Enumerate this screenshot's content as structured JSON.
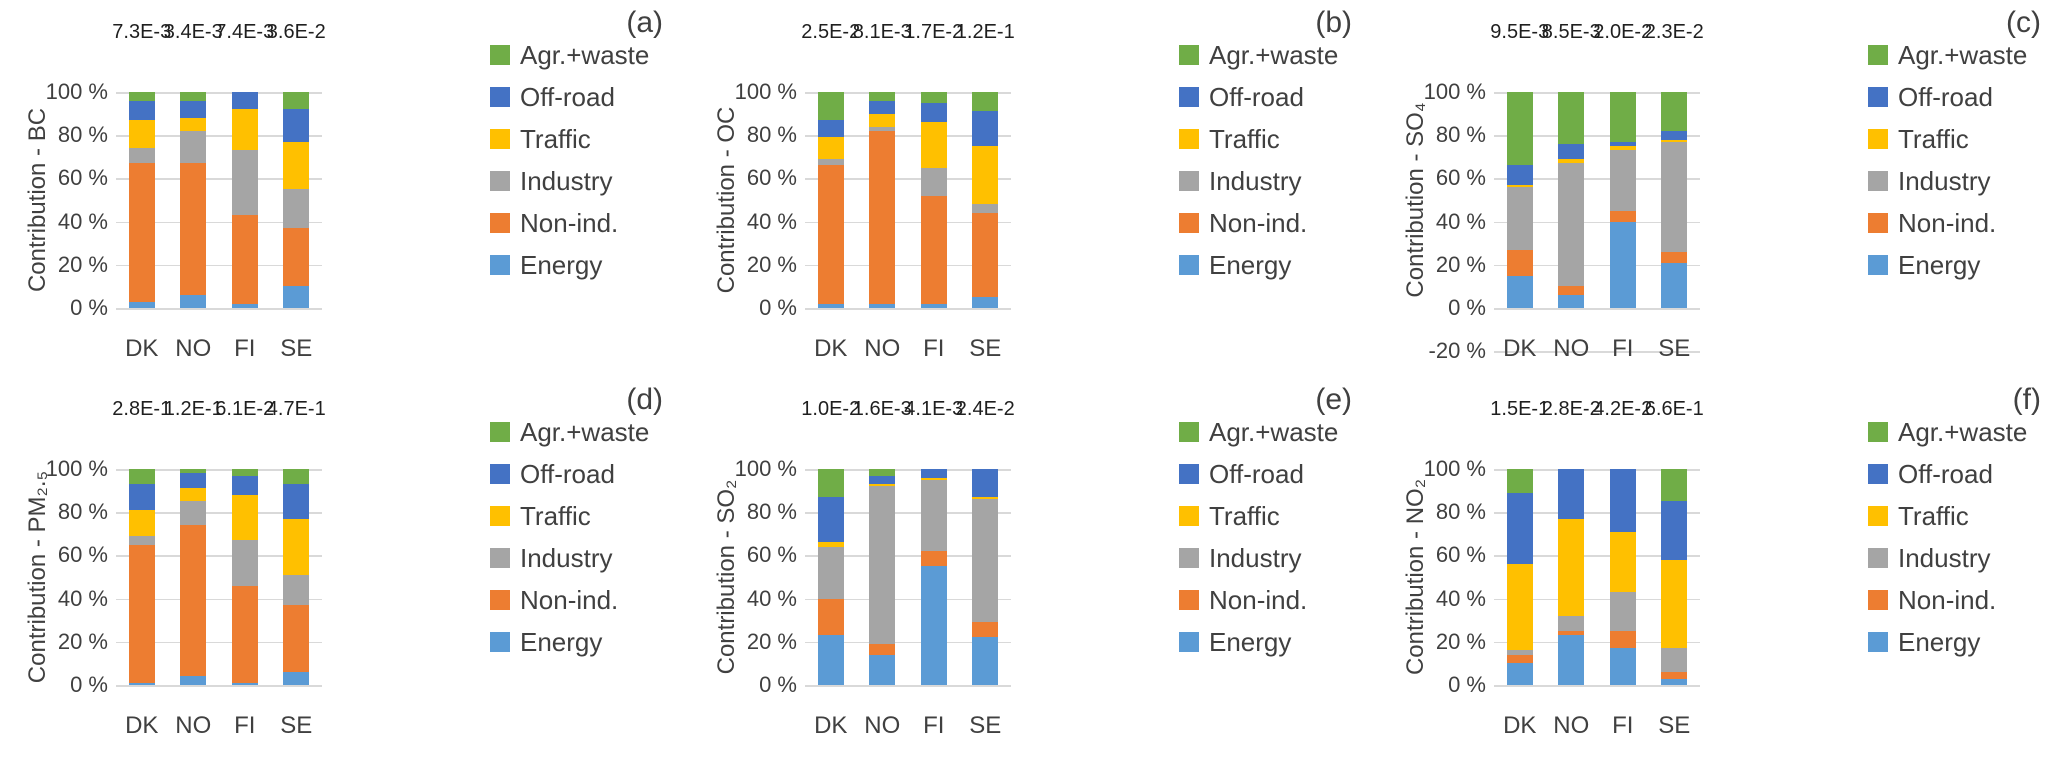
{
  "colors": {
    "energy": "#5B9BD5",
    "non_ind": "#ED7D31",
    "industry": "#A5A5A5",
    "traffic": "#FFC000",
    "off_road": "#4472C4",
    "agr_waste": "#70AD47",
    "gridline": "#D9D9D9",
    "text": "#404040"
  },
  "legend": {
    "items": [
      {
        "key": "agr_waste",
        "label": "Agr.+waste",
        "color": "#70AD47"
      },
      {
        "key": "off_road",
        "label": "Off-road",
        "color": "#4472C4"
      },
      {
        "key": "traffic",
        "label": "Traffic",
        "color": "#FFC000"
      },
      {
        "key": "industry",
        "label": "Industry",
        "color": "#A5A5A5"
      },
      {
        "key": "non_ind",
        "label": "Non-ind.",
        "color": "#ED7D31"
      },
      {
        "key": "energy",
        "label": "Energy",
        "color": "#5B9BD5"
      }
    ]
  },
  "chart_data": [
    {
      "panel": "(a)",
      "type": "bar",
      "stacked": true,
      "ylabel": "Contribution - BC",
      "categories": [
        "DK",
        "NO",
        "FI",
        "SE"
      ],
      "yticks": [
        "100 %",
        "80 %",
        "60 %",
        "40 %",
        "20 %",
        "0 %"
      ],
      "extra_tick": null,
      "ylim": [
        0,
        100
      ],
      "annotations": [
        "7.3E-3",
        "3.4E-3",
        "7.4E-3",
        "3.6E-2"
      ],
      "series": [
        {
          "key": "energy",
          "name": "Energy",
          "values": [
            3,
            6,
            2,
            10
          ]
        },
        {
          "key": "non_ind",
          "name": "Non-ind.",
          "values": [
            64,
            61,
            41,
            27
          ]
        },
        {
          "key": "industry",
          "name": "Industry",
          "values": [
            7,
            15,
            30,
            18
          ]
        },
        {
          "key": "traffic",
          "name": "Traffic",
          "values": [
            13,
            6,
            19,
            22
          ]
        },
        {
          "key": "off_road",
          "name": "Off-road",
          "values": [
            9,
            8,
            8,
            15
          ]
        },
        {
          "key": "agr_waste",
          "name": "Agr.+waste",
          "values": [
            4,
            4,
            0,
            8
          ]
        }
      ]
    },
    {
      "panel": "(b)",
      "type": "bar",
      "stacked": true,
      "ylabel": "Contribution - OC",
      "categories": [
        "DK",
        "NO",
        "FI",
        "SE"
      ],
      "yticks": [
        "100 %",
        "80 %",
        "60 %",
        "40 %",
        "20 %",
        "0 %"
      ],
      "extra_tick": null,
      "ylim": [
        0,
        100
      ],
      "annotations": [
        "2.5E-2",
        "8.1E-3",
        "1.7E-2",
        "1.2E-1"
      ],
      "series": [
        {
          "key": "energy",
          "name": "Energy",
          "values": [
            2,
            2,
            2,
            5
          ]
        },
        {
          "key": "non_ind",
          "name": "Non-ind.",
          "values": [
            64,
            80,
            50,
            39
          ]
        },
        {
          "key": "industry",
          "name": "Industry",
          "values": [
            3,
            2,
            13,
            4
          ]
        },
        {
          "key": "traffic",
          "name": "Traffic",
          "values": [
            10,
            6,
            21,
            27
          ]
        },
        {
          "key": "off_road",
          "name": "Off-road",
          "values": [
            8,
            6,
            9,
            16
          ]
        },
        {
          "key": "agr_waste",
          "name": "Agr.+waste",
          "values": [
            13,
            4,
            5,
            9
          ]
        }
      ]
    },
    {
      "panel": "(c)",
      "type": "bar",
      "stacked": true,
      "ylabel": "Contribution - SO₄",
      "categories": [
        "DK",
        "NO",
        "FI",
        "SE"
      ],
      "yticks": [
        "100 %",
        "80 %",
        "60 %",
        "40 %",
        "20 %",
        "0 %"
      ],
      "extra_tick": "-20 %",
      "ylim": [
        -20,
        100
      ],
      "annotations": [
        "9.5E-3",
        "8.5E-3",
        "2.0E-2",
        "2.3E-2"
      ],
      "series": [
        {
          "key": "energy",
          "name": "Energy",
          "values": [
            15,
            6,
            40,
            21
          ]
        },
        {
          "key": "non_ind",
          "name": "Non-ind.",
          "values": [
            12,
            4,
            5,
            5
          ]
        },
        {
          "key": "industry",
          "name": "Industry",
          "values": [
            29,
            57,
            28,
            51
          ]
        },
        {
          "key": "traffic",
          "name": "Traffic",
          "values": [
            1,
            2,
            2,
            1
          ]
        },
        {
          "key": "off_road",
          "name": "Off-road",
          "values": [
            9,
            7,
            2,
            4
          ]
        },
        {
          "key": "agr_waste",
          "name": "Agr.+waste",
          "values": [
            34,
            24,
            23,
            18
          ]
        }
      ]
    },
    {
      "panel": "(d)",
      "type": "bar",
      "stacked": true,
      "ylabel": "Contribution - PM₂.₅",
      "categories": [
        "DK",
        "NO",
        "FI",
        "SE"
      ],
      "yticks": [
        "100 %",
        "80 %",
        "60 %",
        "40 %",
        "20 %",
        "0 %"
      ],
      "extra_tick": null,
      "ylim": [
        0,
        100
      ],
      "annotations": [
        "2.8E-1",
        "1.2E-1",
        "6.1E-2",
        "4.7E-1"
      ],
      "series": [
        {
          "key": "energy",
          "name": "Energy",
          "values": [
            1,
            4,
            1,
            6
          ]
        },
        {
          "key": "non_ind",
          "name": "Non-ind.",
          "values": [
            64,
            70,
            45,
            31
          ]
        },
        {
          "key": "industry",
          "name": "Industry",
          "values": [
            4,
            11,
            21,
            14
          ]
        },
        {
          "key": "traffic",
          "name": "Traffic",
          "values": [
            12,
            6,
            21,
            26
          ]
        },
        {
          "key": "off_road",
          "name": "Off-road",
          "values": [
            12,
            7,
            9,
            16
          ]
        },
        {
          "key": "agr_waste",
          "name": "Agr.+waste",
          "values": [
            7,
            2,
            3,
            7
          ]
        }
      ]
    },
    {
      "panel": "(e)",
      "type": "bar",
      "stacked": true,
      "ylabel": "Contribution - SO₂",
      "categories": [
        "DK",
        "NO",
        "FI",
        "SE"
      ],
      "yticks": [
        "100 %",
        "80 %",
        "60 %",
        "40 %",
        "20 %",
        "0 %"
      ],
      "extra_tick": null,
      "ylim": [
        0,
        100
      ],
      "annotations": [
        "1.0E-2",
        "1.6E-3",
        "4.1E-3",
        "2.4E-2"
      ],
      "series": [
        {
          "key": "energy",
          "name": "Energy",
          "values": [
            23,
            14,
            55,
            22
          ]
        },
        {
          "key": "non_ind",
          "name": "Non-ind.",
          "values": [
            17,
            5,
            7,
            7
          ]
        },
        {
          "key": "industry",
          "name": "Industry",
          "values": [
            24,
            73,
            33,
            57
          ]
        },
        {
          "key": "traffic",
          "name": "Traffic",
          "values": [
            2,
            1,
            1,
            1
          ]
        },
        {
          "key": "off_road",
          "name": "Off-road",
          "values": [
            21,
            4,
            4,
            13
          ]
        },
        {
          "key": "agr_waste",
          "name": "Agr.+waste",
          "values": [
            13,
            3,
            0,
            0
          ]
        }
      ]
    },
    {
      "panel": "(f)",
      "type": "bar",
      "stacked": true,
      "ylabel": "Contribution - NO₂",
      "categories": [
        "DK",
        "NO",
        "FI",
        "SE"
      ],
      "yticks": [
        "100 %",
        "80 %",
        "60 %",
        "40 %",
        "20 %",
        "0 %"
      ],
      "extra_tick": null,
      "ylim": [
        0,
        100
      ],
      "annotations": [
        "1.5E-1",
        "2.8E-2",
        "4.2E-2",
        "6.6E-1"
      ],
      "series": [
        {
          "key": "energy",
          "name": "Energy",
          "values": [
            10,
            23,
            17,
            3
          ]
        },
        {
          "key": "non_ind",
          "name": "Non-ind.",
          "values": [
            4,
            2,
            8,
            3
          ]
        },
        {
          "key": "industry",
          "name": "Industry",
          "values": [
            2,
            7,
            18,
            11
          ]
        },
        {
          "key": "traffic",
          "name": "Traffic",
          "values": [
            40,
            45,
            28,
            41
          ]
        },
        {
          "key": "off_road",
          "name": "Off-road",
          "values": [
            33,
            23,
            29,
            27
          ]
        },
        {
          "key": "agr_waste",
          "name": "Agr.+waste",
          "values": [
            11,
            0,
            0,
            15
          ]
        }
      ]
    }
  ]
}
